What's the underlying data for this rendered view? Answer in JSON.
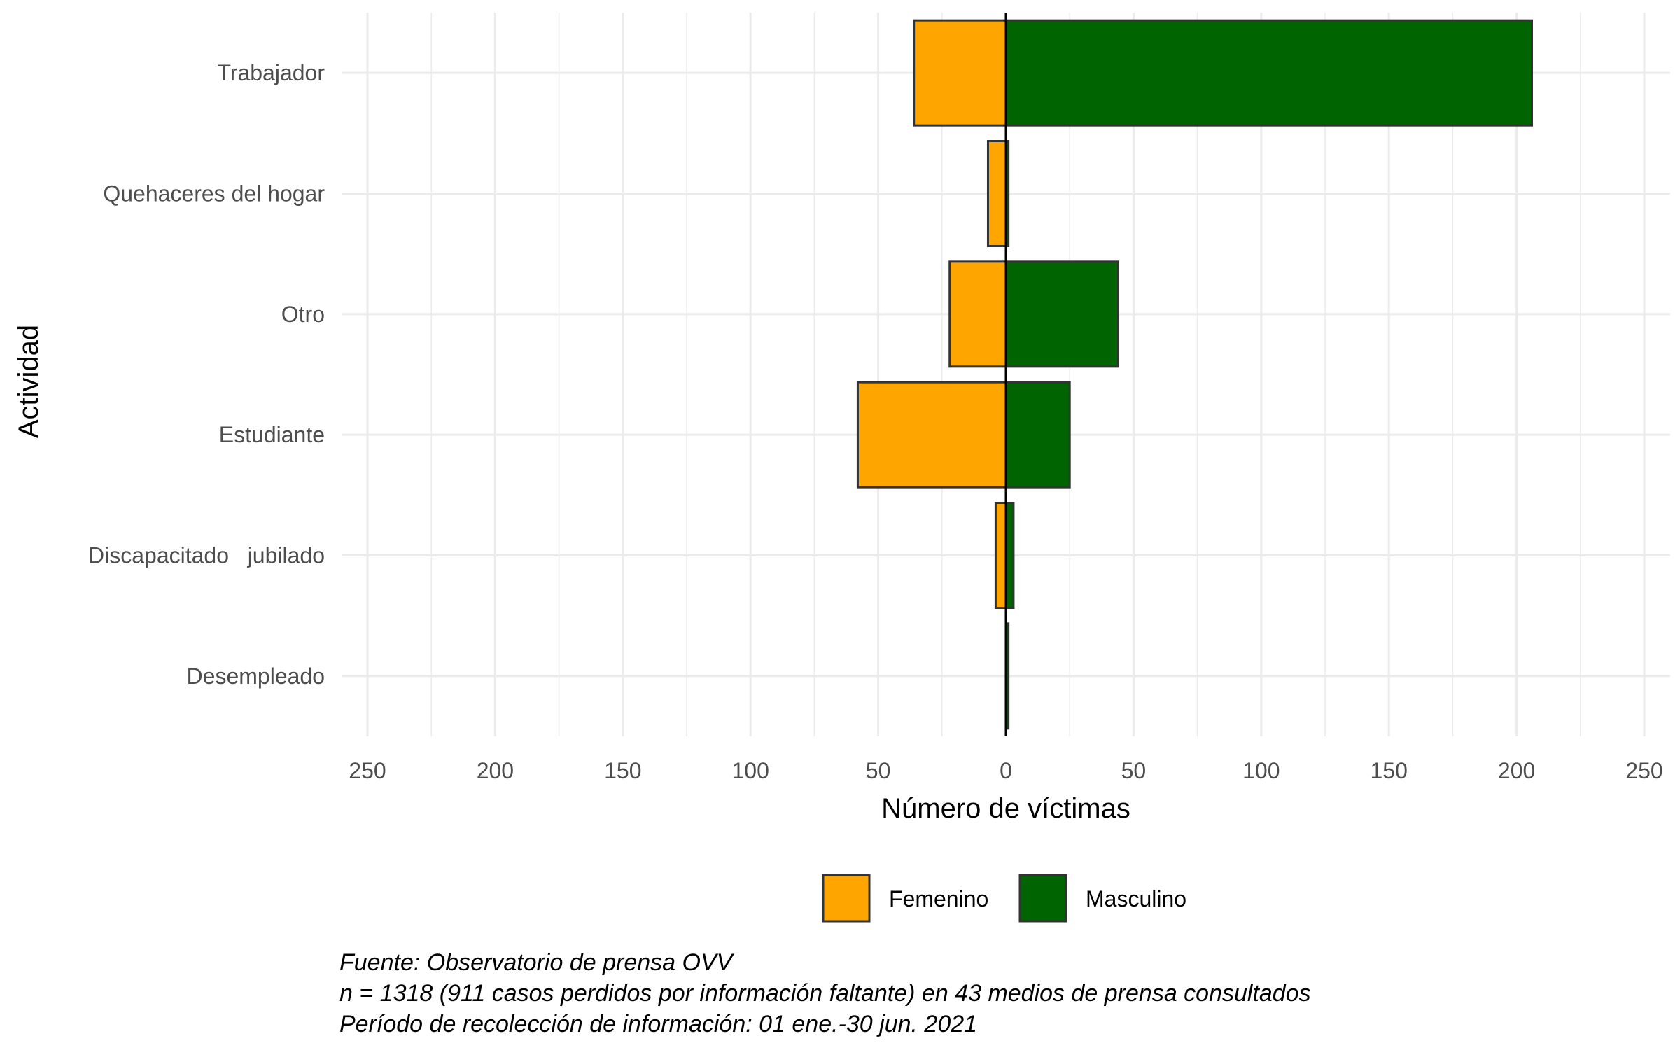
{
  "chart_data": {
    "type": "bar",
    "orientation": "horizontal-diverging",
    "categories": [
      "Trabajador",
      "Quehaceres del hogar",
      "Otro",
      "Estudiante",
      "Discapacitado   jubilado",
      "Desempleado"
    ],
    "series": [
      {
        "name": "Femenino",
        "color": "#FFA500",
        "values": [
          36,
          7,
          22,
          58,
          4,
          0
        ]
      },
      {
        "name": "Masculino",
        "color": "#006400",
        "values": [
          206,
          1,
          44,
          25,
          3,
          1
        ]
      }
    ],
    "xlabel": "Número de víctimas",
    "ylabel": "Actividad",
    "xlim": [
      -250,
      250
    ],
    "x_ticks": [
      -250,
      -200,
      -150,
      -100,
      -50,
      0,
      50,
      100,
      150,
      200,
      250
    ],
    "x_tick_labels": [
      "250",
      "200",
      "150",
      "100",
      "50",
      "0",
      "50",
      "100",
      "150",
      "200",
      "250"
    ],
    "grid": true,
    "legend_position": "bottom",
    "legend_labels": [
      "Femenino",
      "Masculino"
    ],
    "caption": [
      "Fuente: Observatorio de prensa OVV",
      "n = 1318 (911 casos perdidos por información faltante) en 43 medios de prensa consultados",
      "Período de recolección de información: 01 ene.-30 jun. 2021"
    ]
  }
}
